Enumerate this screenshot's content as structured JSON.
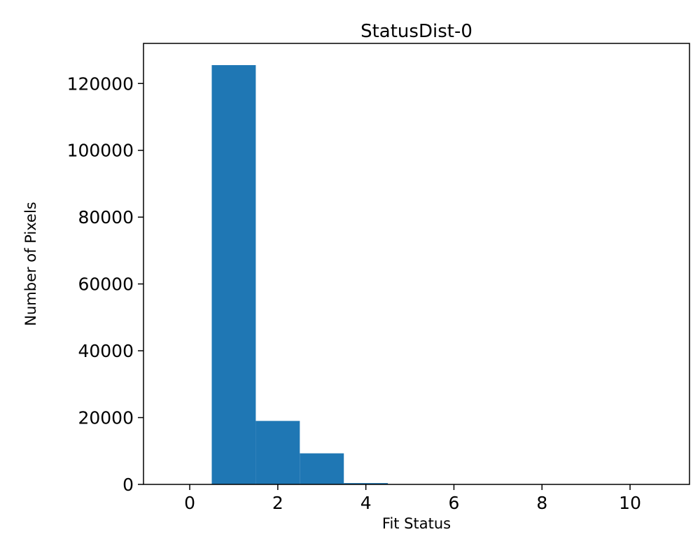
{
  "chart_data": {
    "type": "bar",
    "title": "StatusDist-0",
    "xlabel": "Fit Status",
    "ylabel": "Number of Pixels",
    "bar_color": "#1f77b4",
    "axis_color": "#000000",
    "xlim": [
      -1.05,
      11.35
    ],
    "ylim": [
      0,
      132000
    ],
    "xticks": [
      0,
      2,
      4,
      6,
      8,
      10
    ],
    "yticks": [
      0,
      20000,
      40000,
      60000,
      80000,
      100000,
      120000
    ],
    "bars": [
      {
        "x_start": 0.5,
        "x_end": 1.5,
        "value": 125500
      },
      {
        "x_start": 1.5,
        "x_end": 2.5,
        "value": 19000
      },
      {
        "x_start": 2.5,
        "x_end": 3.5,
        "value": 9300
      },
      {
        "x_start": 3.5,
        "x_end": 4.5,
        "value": 400
      }
    ],
    "legend": null,
    "grid": false
  }
}
